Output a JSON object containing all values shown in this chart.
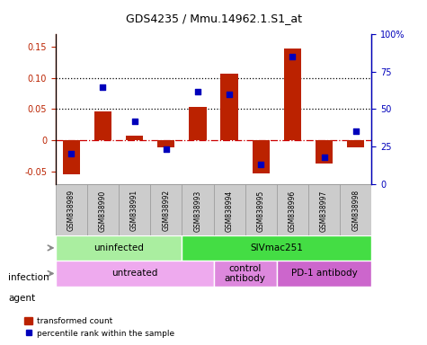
{
  "title": "GDS4235 / Mmu.14962.1.S1_at",
  "samples": [
    "GSM838989",
    "GSM838990",
    "GSM838991",
    "GSM838992",
    "GSM838993",
    "GSM838994",
    "GSM838995",
    "GSM838996",
    "GSM838997",
    "GSM838998"
  ],
  "bar_values": [
    -0.055,
    0.046,
    0.008,
    -0.012,
    0.054,
    0.107,
    -0.053,
    0.148,
    -0.037,
    -0.012
  ],
  "dot_percentiles": [
    20,
    65,
    42,
    23,
    62,
    60,
    13,
    85,
    18,
    35
  ],
  "bar_color": "#bb2200",
  "dot_color": "#0000bb",
  "ylim_left": [
    -0.07,
    0.17
  ],
  "ylim_right": [
    0,
    100
  ],
  "yticks_left": [
    -0.05,
    0.0,
    0.05,
    0.1,
    0.15
  ],
  "yticks_left_labels": [
    "-0.05",
    "0",
    "0.05",
    "0.10",
    "0.15"
  ],
  "yticks_right": [
    0,
    25,
    50,
    75,
    100
  ],
  "yticks_right_labels": [
    "0",
    "25",
    "50",
    "75",
    "100%"
  ],
  "hlines": [
    0.1,
    0.05
  ],
  "zero_line_color": "#cc0000",
  "infection_groups": [
    {
      "label": "uninfected",
      "start": 0,
      "end": 4,
      "color": "#aaeea0"
    },
    {
      "label": "SIVmac251",
      "start": 4,
      "end": 10,
      "color": "#44dd44"
    }
  ],
  "agent_groups": [
    {
      "label": "untreated",
      "start": 0,
      "end": 5,
      "color": "#eeaaee"
    },
    {
      "label": "control\nantibody",
      "start": 5,
      "end": 7,
      "color": "#dd88dd"
    },
    {
      "label": "PD-1 antibody",
      "start": 7,
      "end": 10,
      "color": "#cc66cc"
    }
  ],
  "infection_label": "infection",
  "agent_label": "agent",
  "legend_bar_label": "transformed count",
  "legend_dot_label": "percentile rank within the sample",
  "bar_width": 0.55,
  "sample_box_color": "#cccccc",
  "sample_box_edge": "#999999"
}
